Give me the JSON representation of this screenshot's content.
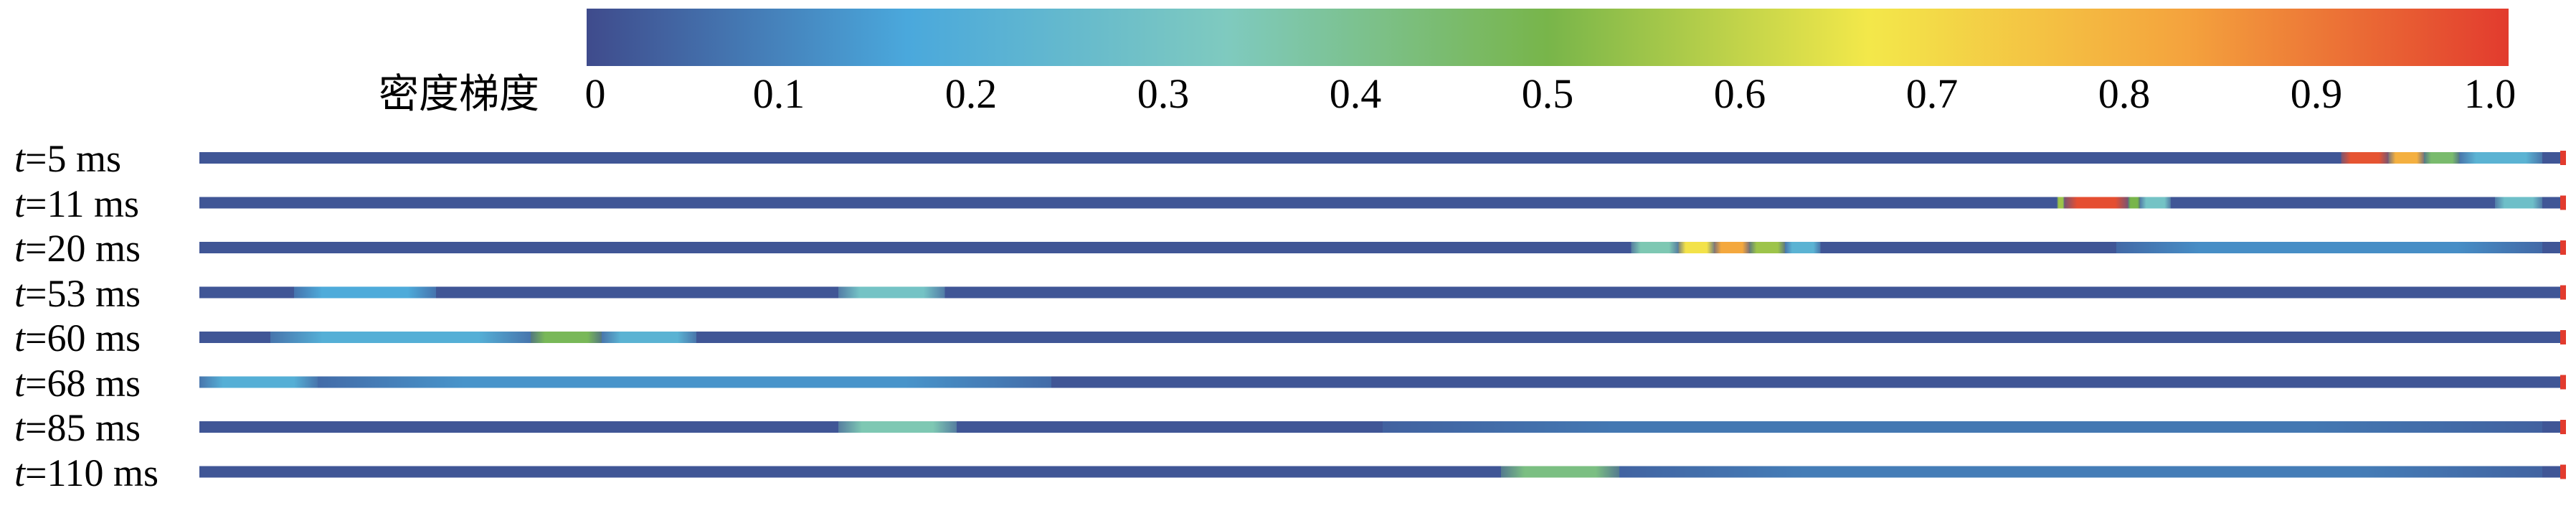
{
  "colormap": [
    "#3f4b8c",
    "#4aa8dc",
    "#7fcabf",
    "#78b54a",
    "#f3e84a",
    "#f4a23d",
    "#e23b2e"
  ],
  "colorbar": {
    "title": "密度梯度",
    "ticks": [
      "0",
      "0.1",
      "0.2",
      "0.3",
      "0.4",
      "0.5",
      "0.6",
      "0.7",
      "0.8",
      "0.9",
      "1.0"
    ]
  },
  "chart_data": {
    "type": "heatmap",
    "colorbar_label": "密度梯度",
    "value_range": [
      0,
      1.0
    ],
    "rows": [
      {
        "label_var": "t",
        "label_rest": "=5 ms",
        "bands": [
          {
            "from": 0.905,
            "to": 0.925,
            "value": 0.96
          },
          {
            "from": 0.925,
            "to": 0.94,
            "value": 0.8
          },
          {
            "from": 0.94,
            "to": 0.955,
            "value": 0.45
          },
          {
            "from": 0.955,
            "to": 0.99,
            "value": 0.22
          }
        ]
      },
      {
        "label_var": "t",
        "label_rest": "=11 ms",
        "bands": [
          {
            "from": 0.785,
            "to": 0.788,
            "value": 0.55
          },
          {
            "from": 0.788,
            "to": 0.815,
            "value": 0.97
          },
          {
            "from": 0.815,
            "to": 0.82,
            "value": 0.5
          },
          {
            "from": 0.82,
            "to": 0.833,
            "value": 0.3
          },
          {
            "from": 0.97,
            "to": 0.99,
            "value": 0.28
          }
        ]
      },
      {
        "label_var": "t",
        "label_rest": "=20 ms",
        "bands": [
          {
            "from": 0.605,
            "to": 0.625,
            "value": 0.35
          },
          {
            "from": 0.625,
            "to": 0.64,
            "value": 0.68
          },
          {
            "from": 0.64,
            "to": 0.655,
            "value": 0.82
          },
          {
            "from": 0.655,
            "to": 0.67,
            "value": 0.55
          },
          {
            "from": 0.67,
            "to": 0.685,
            "value": 0.22
          },
          {
            "from": 0.81,
            "to": 0.99,
            "value": 0.12
          }
        ]
      },
      {
        "label_var": "t",
        "label_rest": "=53 ms",
        "bands": [
          {
            "from": 0.04,
            "to": 0.1,
            "value": 0.18
          },
          {
            "from": 0.27,
            "to": 0.315,
            "value": 0.3
          }
        ]
      },
      {
        "label_var": "t",
        "label_rest": "=60 ms",
        "bands": [
          {
            "from": 0.03,
            "to": 0.14,
            "value": 0.2
          },
          {
            "from": 0.14,
            "to": 0.17,
            "value": 0.48
          },
          {
            "from": 0.17,
            "to": 0.21,
            "value": 0.22
          }
        ]
      },
      {
        "label_var": "t",
        "label_rest": "=68 ms",
        "bands": [
          {
            "from": 0.0,
            "to": 0.05,
            "value": 0.2
          },
          {
            "from": 0.05,
            "to": 0.36,
            "value": 0.13
          }
        ]
      },
      {
        "label_var": "t",
        "label_rest": "=85 ms",
        "bands": [
          {
            "from": 0.27,
            "to": 0.32,
            "value": 0.35
          },
          {
            "from": 0.5,
            "to": 0.99,
            "value": 0.08
          }
        ]
      },
      {
        "label_var": "t",
        "label_rest": "=110 ms",
        "bands": [
          {
            "from": 0.55,
            "to": 0.6,
            "value": 0.42
          },
          {
            "from": 0.6,
            "to": 0.99,
            "value": 0.09
          }
        ]
      }
    ]
  }
}
